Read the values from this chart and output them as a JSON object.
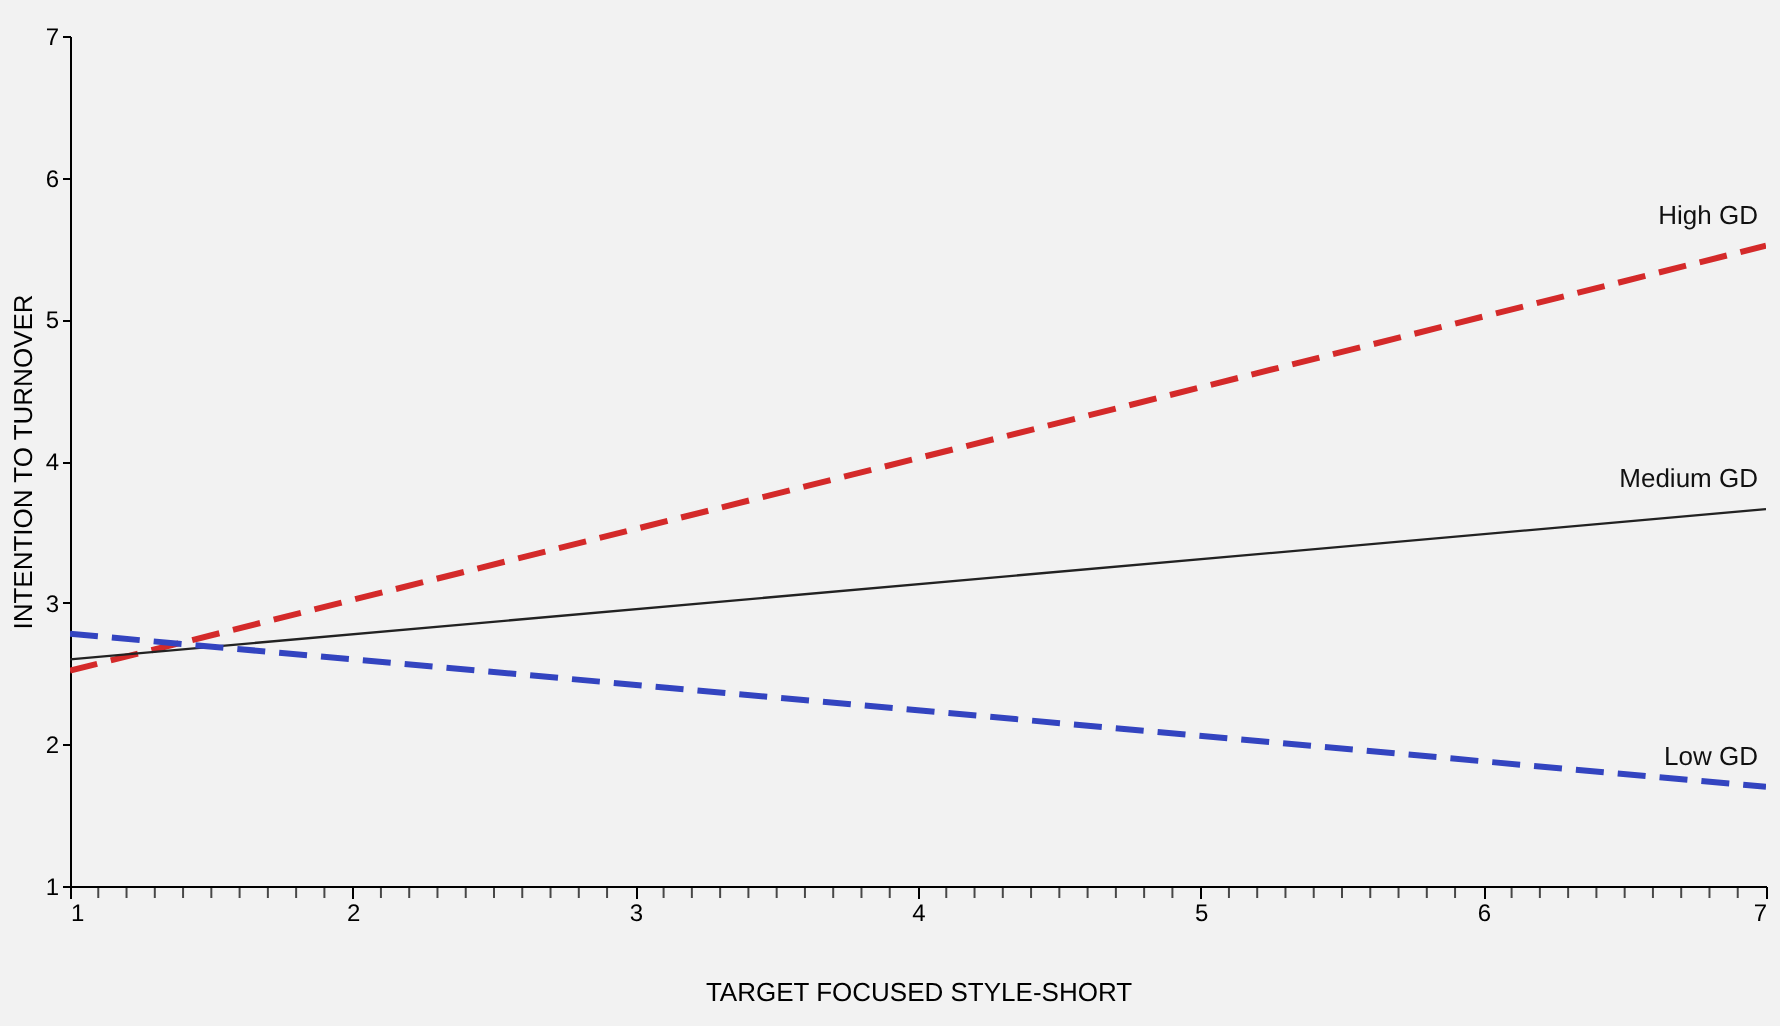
{
  "chart_data": {
    "type": "line",
    "xlabel": "TARGET FOCUSED STYLE-SHORT",
    "ylabel": "INTENTION TO TURNOVER",
    "x": [
      1,
      7
    ],
    "series": [
      {
        "name": "High GD",
        "color": "#d42a2a",
        "values": [
          2.52,
          5.52
        ],
        "line_style": "dashed"
      },
      {
        "name": "Medium GD",
        "color": "#222222",
        "values": [
          2.6,
          3.66
        ],
        "line_style": "solid"
      },
      {
        "name": "Low GD",
        "color": "#3344c0",
        "values": [
          2.78,
          1.7
        ],
        "line_style": "dashed"
      }
    ],
    "xlim": [
      1,
      7
    ],
    "ylim": [
      1,
      7
    ],
    "xticks": [
      1,
      {
        "value": 1.1,
        "label": null
      },
      {
        "value": 1.2,
        "label": null
      },
      {
        "value": 1.3,
        "label": null
      },
      {
        "value": 1.4,
        "label": null
      },
      {
        "value": 1.5,
        "label": null
      },
      {
        "value": 1.6,
        "label": null
      },
      {
        "value": 1.7,
        "label": null
      },
      {
        "value": 1.8,
        "label": null
      },
      {
        "value": 1.9,
        "label": null
      },
      2,
      {
        "value": 2.1,
        "label": null
      },
      {
        "value": 2.2,
        "label": null
      },
      {
        "value": 2.3,
        "label": null
      },
      {
        "value": 2.4,
        "label": null
      },
      {
        "value": 2.5,
        "label": null
      },
      {
        "value": 2.6,
        "label": null
      },
      {
        "value": 2.7,
        "label": null
      },
      {
        "value": 2.8,
        "label": null
      },
      {
        "value": 2.9,
        "label": null
      },
      3,
      {
        "value": 3.1,
        "label": null
      },
      {
        "value": 3.2,
        "label": null
      },
      {
        "value": 3.3,
        "label": null
      },
      {
        "value": 3.4,
        "label": null
      },
      {
        "value": 3.5,
        "label": null
      },
      {
        "value": 3.6,
        "label": null
      },
      {
        "value": 3.7,
        "label": null
      },
      {
        "value": 3.8,
        "label": null
      },
      {
        "value": 3.9,
        "label": null
      },
      4,
      {
        "value": 4.1,
        "label": null
      },
      {
        "value": 4.2,
        "label": null
      },
      {
        "value": 4.3,
        "label": null
      },
      {
        "value": 4.4,
        "label": null
      },
      {
        "value": 4.5,
        "label": null
      },
      {
        "value": 4.6,
        "label": null
      },
      {
        "value": 4.7,
        "label": null
      },
      {
        "value": 4.8,
        "label": null
      },
      {
        "value": 4.9,
        "label": null
      },
      5,
      {
        "value": 5.1,
        "label": null
      },
      {
        "value": 5.2,
        "label": null
      },
      {
        "value": 5.3,
        "label": null
      },
      {
        "value": 5.4,
        "label": null
      },
      {
        "value": 5.5,
        "label": null
      },
      {
        "value": 5.6,
        "label": null
      },
      {
        "value": 5.7,
        "label": null
      },
      {
        "value": 5.8,
        "label": null
      },
      {
        "value": 5.9,
        "label": null
      },
      6,
      {
        "value": 6.1,
        "label": null
      },
      {
        "value": 6.2,
        "label": null
      },
      {
        "value": 6.3,
        "label": null
      },
      {
        "value": 6.4,
        "label": null
      },
      {
        "value": 6.5,
        "label": null
      },
      {
        "value": 6.6,
        "label": null
      },
      {
        "value": 6.7,
        "label": null
      },
      {
        "value": 6.8,
        "label": null
      },
      {
        "value": 6.9,
        "label": null
      },
      7
    ],
    "yticks": [
      1,
      2,
      3,
      4,
      5,
      6,
      7
    ],
    "grid": false
  }
}
